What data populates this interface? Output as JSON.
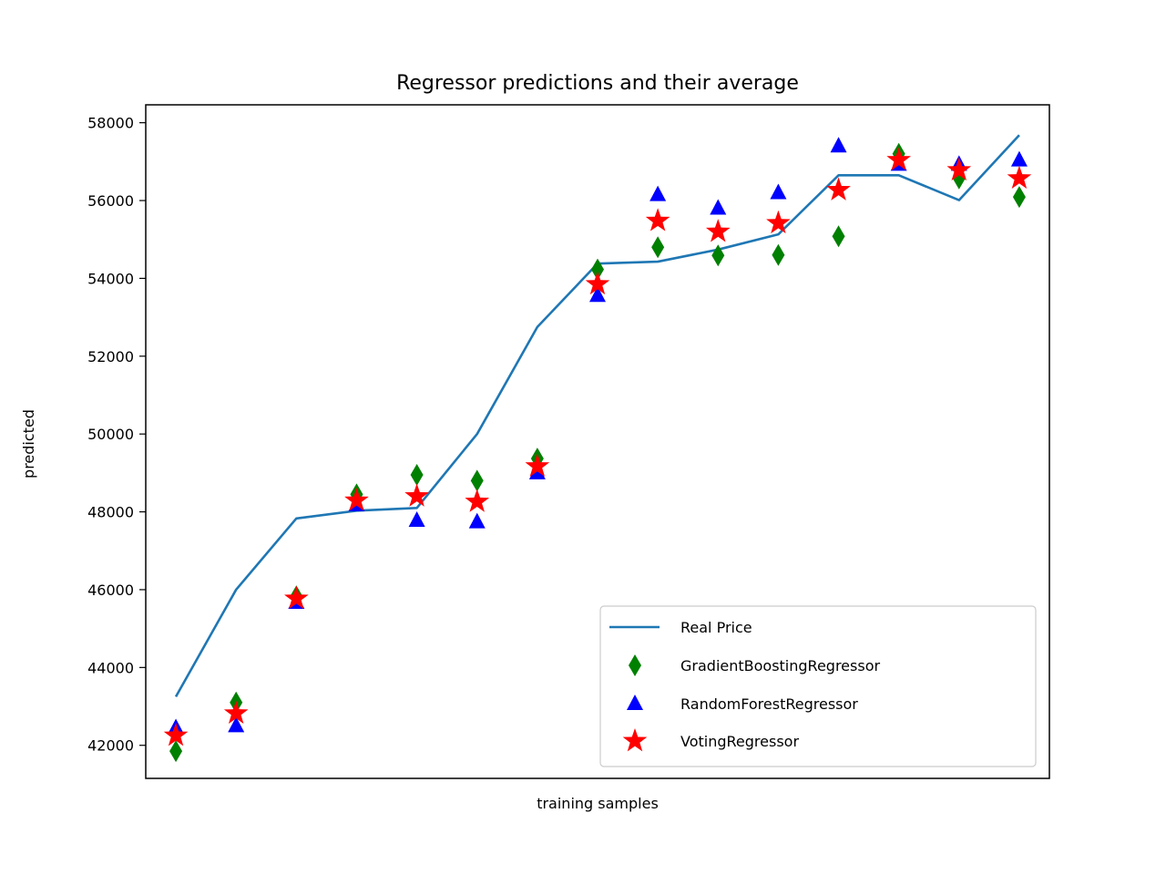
{
  "chart_data": {
    "type": "line",
    "title": "Regressor predictions and their average",
    "xlabel": "training samples",
    "ylabel": "predicted",
    "ylim": [
      41150,
      58460
    ],
    "xlim": [
      -0.5,
      14.5
    ],
    "x_ticks_shown": false,
    "yticks": [
      42000,
      44000,
      46000,
      48000,
      50000,
      52000,
      54000,
      56000,
      58000
    ],
    "ytick_labels": [
      "42000",
      "44000",
      "46000",
      "48000",
      "50000",
      "52000",
      "54000",
      "56000",
      "58000"
    ],
    "grid": false,
    "legend_position": "lower right",
    "x": [
      0,
      1,
      2,
      3,
      4,
      5,
      6,
      7,
      8,
      9,
      10,
      11,
      12,
      13,
      14
    ],
    "series": [
      {
        "name": "Real Price",
        "kind": "line",
        "color": "#1f77b4",
        "values": [
          43250,
          46000,
          47830,
          48030,
          48100,
          50000,
          52750,
          54380,
          54430,
          54740,
          55130,
          56650,
          56650,
          56010,
          57680
        ]
      },
      {
        "name": "GradientBoostingRegressor",
        "kind": "marker",
        "marker": "thin-diamond",
        "color": "#008000",
        "values": [
          41850,
          43100,
          45830,
          48450,
          48950,
          48800,
          49370,
          54230,
          54800,
          54590,
          54600,
          55080,
          57200,
          56570,
          56090
        ]
      },
      {
        "name": "RandomForestRegressor",
        "kind": "marker",
        "marker": "triangle-up",
        "color": "#0000ff",
        "values": [
          42450,
          42500,
          45670,
          48180,
          47780,
          47740,
          49000,
          53560,
          56150,
          55800,
          56200,
          57400,
          56930,
          56930,
          57040
        ]
      },
      {
        "name": "VotingRegressor",
        "kind": "marker",
        "marker": "star",
        "color": "#ff0000",
        "values": [
          42250,
          42820,
          45770,
          48290,
          48400,
          48260,
          49170,
          53850,
          55480,
          55200,
          55420,
          56270,
          57040,
          56780,
          56570
        ]
      }
    ]
  }
}
